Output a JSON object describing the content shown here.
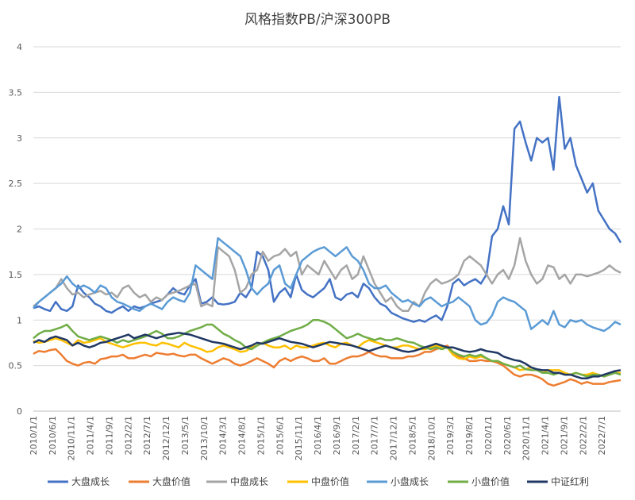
{
  "chart_data": {
    "type": "line",
    "title": "风格指数PB/沪深300PB",
    "xlabel": "",
    "ylabel": "",
    "ylim": [
      0,
      4
    ],
    "y_ticks": [
      "0",
      "0.5",
      "1",
      "1.5",
      "2",
      "2.5",
      "3",
      "3.5",
      "4"
    ],
    "x_tick_labels": [
      "2010/1/1",
      "2010/6/1",
      "2010/11/1",
      "2011/4/1",
      "2011/9/1",
      "2012/2/1",
      "2012/7/1",
      "2012/12/1",
      "2013/5/1",
      "2013/10/1",
      "2014/3/1",
      "2014/8/1",
      "2015/1/1",
      "2015/6/1",
      "2015/11/1",
      "2016/4/1",
      "2016/9/1",
      "2017/2/1",
      "2017/7/1",
      "2017/12/1",
      "2018/5/1",
      "2018/10/1",
      "2019/3/1",
      "2019/8/1",
      "2020/1/1",
      "2020/6/1",
      "2020/11/1",
      "2021/4/1",
      "2021/9/1",
      "2022/2/1",
      "2022/7/1"
    ],
    "grid": true,
    "legend_position": "bottom",
    "series": [
      {
        "name": "大盘成长",
        "color": "#4472C4",
        "values": [
          1.13,
          1.15,
          1.12,
          1.1,
          1.2,
          1.12,
          1.1,
          1.15,
          1.38,
          1.3,
          1.25,
          1.18,
          1.15,
          1.1,
          1.08,
          1.12,
          1.15,
          1.1,
          1.15,
          1.13,
          1.15,
          1.18,
          1.2,
          1.22,
          1.28,
          1.35,
          1.3,
          1.28,
          1.38,
          1.45,
          1.18,
          1.2,
          1.25,
          1.18,
          1.17,
          1.18,
          1.2,
          1.3,
          1.25,
          1.35,
          1.75,
          1.7,
          1.55,
          1.2,
          1.3,
          1.35,
          1.25,
          1.5,
          1.33,
          1.28,
          1.25,
          1.3,
          1.35,
          1.45,
          1.25,
          1.22,
          1.28,
          1.3,
          1.25,
          1.4,
          1.35,
          1.25,
          1.18,
          1.15,
          1.08,
          1.05,
          1.02,
          1.0,
          0.98,
          1.0,
          0.98,
          1.02,
          1.05,
          1.0,
          1.15,
          1.4,
          1.45,
          1.38,
          1.42,
          1.45,
          1.4,
          1.5,
          1.92,
          2.0,
          2.25,
          2.05,
          3.1,
          3.18,
          2.95,
          2.75,
          3.0,
          2.95,
          3.0,
          2.65,
          3.45,
          2.88,
          3.0,
          2.7,
          2.55,
          2.4,
          2.5,
          2.2,
          2.1,
          2.0,
          1.95,
          1.85
        ]
      },
      {
        "name": "大盘价值",
        "color": "#ED7D31",
        "values": [
          0.63,
          0.66,
          0.65,
          0.67,
          0.68,
          0.62,
          0.55,
          0.52,
          0.5,
          0.53,
          0.54,
          0.52,
          0.57,
          0.58,
          0.6,
          0.6,
          0.62,
          0.58,
          0.58,
          0.6,
          0.62,
          0.6,
          0.64,
          0.63,
          0.62,
          0.63,
          0.61,
          0.6,
          0.62,
          0.62,
          0.58,
          0.55,
          0.52,
          0.55,
          0.58,
          0.56,
          0.52,
          0.5,
          0.52,
          0.55,
          0.58,
          0.55,
          0.52,
          0.48,
          0.55,
          0.58,
          0.55,
          0.58,
          0.6,
          0.58,
          0.55,
          0.55,
          0.58,
          0.52,
          0.52,
          0.55,
          0.58,
          0.6,
          0.6,
          0.62,
          0.65,
          0.62,
          0.6,
          0.6,
          0.58,
          0.58,
          0.58,
          0.6,
          0.6,
          0.62,
          0.65,
          0.65,
          0.68,
          0.7,
          0.72,
          0.65,
          0.6,
          0.58,
          0.55,
          0.55,
          0.56,
          0.55,
          0.55,
          0.53,
          0.5,
          0.45,
          0.4,
          0.38,
          0.4,
          0.4,
          0.38,
          0.35,
          0.3,
          0.28,
          0.3,
          0.32,
          0.35,
          0.33,
          0.3,
          0.32,
          0.3,
          0.3,
          0.3,
          0.32,
          0.33,
          0.34
        ]
      },
      {
        "name": "中盘成长",
        "color": "#A5A5A5",
        "values": [
          1.15,
          1.2,
          1.25,
          1.3,
          1.35,
          1.45,
          1.35,
          1.28,
          1.3,
          1.25,
          1.28,
          1.3,
          1.32,
          1.28,
          1.3,
          1.25,
          1.35,
          1.38,
          1.3,
          1.25,
          1.28,
          1.2,
          1.25,
          1.22,
          1.28,
          1.3,
          1.32,
          1.35,
          1.38,
          1.4,
          1.15,
          1.18,
          1.15,
          1.8,
          1.75,
          1.7,
          1.55,
          1.3,
          1.35,
          1.5,
          1.55,
          1.75,
          1.65,
          1.7,
          1.72,
          1.78,
          1.7,
          1.75,
          1.5,
          1.6,
          1.55,
          1.5,
          1.65,
          1.55,
          1.45,
          1.55,
          1.6,
          1.45,
          1.5,
          1.7,
          1.55,
          1.4,
          1.3,
          1.2,
          1.25,
          1.15,
          1.1,
          1.1,
          1.2,
          1.15,
          1.3,
          1.4,
          1.45,
          1.4,
          1.42,
          1.45,
          1.5,
          1.65,
          1.7,
          1.65,
          1.6,
          1.5,
          1.4,
          1.5,
          1.55,
          1.45,
          1.6,
          1.9,
          1.65,
          1.5,
          1.4,
          1.45,
          1.6,
          1.58,
          1.45,
          1.5,
          1.4,
          1.5,
          1.5,
          1.48,
          1.5,
          1.52,
          1.55,
          1.6,
          1.55,
          1.52
        ]
      },
      {
        "name": "中盘价值",
        "color": "#FFC000",
        "values": [
          0.77,
          0.75,
          0.76,
          0.78,
          0.8,
          0.78,
          0.75,
          0.72,
          0.78,
          0.75,
          0.76,
          0.78,
          0.8,
          0.76,
          0.74,
          0.72,
          0.7,
          0.72,
          0.74,
          0.75,
          0.75,
          0.73,
          0.72,
          0.75,
          0.74,
          0.72,
          0.7,
          0.75,
          0.72,
          0.7,
          0.68,
          0.65,
          0.66,
          0.7,
          0.72,
          0.7,
          0.68,
          0.65,
          0.66,
          0.7,
          0.72,
          0.75,
          0.72,
          0.7,
          0.7,
          0.72,
          0.68,
          0.72,
          0.7,
          0.7,
          0.72,
          0.74,
          0.75,
          0.72,
          0.7,
          0.74,
          0.75,
          0.72,
          0.7,
          0.75,
          0.78,
          0.76,
          0.74,
          0.72,
          0.7,
          0.7,
          0.72,
          0.72,
          0.7,
          0.68,
          0.68,
          0.7,
          0.72,
          0.7,
          0.7,
          0.62,
          0.58,
          0.57,
          0.6,
          0.58,
          0.6,
          0.58,
          0.55,
          0.55,
          0.52,
          0.5,
          0.48,
          0.45,
          0.46,
          0.48,
          0.45,
          0.42,
          0.45,
          0.45,
          0.45,
          0.42,
          0.4,
          0.42,
          0.4,
          0.4,
          0.42,
          0.4,
          0.38,
          0.4,
          0.42,
          0.42
        ]
      },
      {
        "name": "小盘成长",
        "color": "#5B9BD5",
        "values": [
          1.13,
          1.2,
          1.25,
          1.3,
          1.35,
          1.4,
          1.48,
          1.4,
          1.35,
          1.38,
          1.35,
          1.3,
          1.38,
          1.35,
          1.25,
          1.2,
          1.18,
          1.15,
          1.12,
          1.1,
          1.15,
          1.18,
          1.15,
          1.12,
          1.2,
          1.25,
          1.22,
          1.2,
          1.3,
          1.6,
          1.55,
          1.5,
          1.45,
          1.9,
          1.85,
          1.8,
          1.75,
          1.7,
          1.55,
          1.35,
          1.28,
          1.35,
          1.4,
          1.55,
          1.6,
          1.4,
          1.35,
          1.5,
          1.65,
          1.7,
          1.75,
          1.78,
          1.8,
          1.75,
          1.7,
          1.75,
          1.8,
          1.7,
          1.65,
          1.55,
          1.4,
          1.35,
          1.35,
          1.38,
          1.3,
          1.25,
          1.2,
          1.22,
          1.18,
          1.15,
          1.22,
          1.25,
          1.2,
          1.15,
          1.18,
          1.2,
          1.25,
          1.2,
          1.15,
          1.0,
          0.95,
          0.97,
          1.05,
          1.2,
          1.25,
          1.22,
          1.2,
          1.15,
          1.1,
          0.9,
          0.95,
          1.0,
          0.95,
          1.1,
          0.95,
          0.92,
          1.0,
          0.98,
          1.0,
          0.95,
          0.92,
          0.9,
          0.88,
          0.92,
          0.98,
          0.95
        ]
      },
      {
        "name": "小盘价值",
        "color": "#70AD47",
        "values": [
          0.8,
          0.85,
          0.88,
          0.88,
          0.9,
          0.92,
          0.95,
          0.88,
          0.82,
          0.8,
          0.78,
          0.8,
          0.82,
          0.8,
          0.78,
          0.75,
          0.78,
          0.76,
          0.78,
          0.8,
          0.82,
          0.85,
          0.88,
          0.85,
          0.8,
          0.8,
          0.82,
          0.85,
          0.88,
          0.9,
          0.92,
          0.95,
          0.95,
          0.9,
          0.85,
          0.82,
          0.78,
          0.75,
          0.7,
          0.68,
          0.72,
          0.75,
          0.78,
          0.8,
          0.82,
          0.85,
          0.88,
          0.9,
          0.92,
          0.95,
          1.0,
          1.0,
          0.98,
          0.95,
          0.9,
          0.85,
          0.8,
          0.82,
          0.85,
          0.82,
          0.8,
          0.78,
          0.8,
          0.78,
          0.78,
          0.8,
          0.78,
          0.76,
          0.75,
          0.72,
          0.7,
          0.68,
          0.7,
          0.68,
          0.7,
          0.65,
          0.62,
          0.6,
          0.62,
          0.6,
          0.62,
          0.58,
          0.55,
          0.55,
          0.52,
          0.5,
          0.48,
          0.5,
          0.46,
          0.45,
          0.45,
          0.42,
          0.42,
          0.4,
          0.42,
          0.4,
          0.4,
          0.42,
          0.4,
          0.38,
          0.4,
          0.4,
          0.38,
          0.4,
          0.42,
          0.4
        ]
      },
      {
        "name": "中证红利",
        "color": "#203864",
        "values": [
          0.75,
          0.78,
          0.76,
          0.8,
          0.82,
          0.8,
          0.78,
          0.72,
          0.75,
          0.72,
          0.7,
          0.72,
          0.75,
          0.76,
          0.78,
          0.8,
          0.82,
          0.84,
          0.8,
          0.82,
          0.84,
          0.82,
          0.8,
          0.82,
          0.84,
          0.85,
          0.86,
          0.85,
          0.84,
          0.82,
          0.8,
          0.78,
          0.76,
          0.75,
          0.74,
          0.72,
          0.7,
          0.68,
          0.7,
          0.72,
          0.75,
          0.74,
          0.76,
          0.78,
          0.8,
          0.78,
          0.76,
          0.75,
          0.74,
          0.72,
          0.7,
          0.72,
          0.74,
          0.76,
          0.75,
          0.74,
          0.73,
          0.72,
          0.7,
          0.68,
          0.66,
          0.68,
          0.7,
          0.72,
          0.7,
          0.68,
          0.66,
          0.65,
          0.66,
          0.68,
          0.7,
          0.72,
          0.74,
          0.72,
          0.7,
          0.7,
          0.68,
          0.66,
          0.65,
          0.66,
          0.68,
          0.66,
          0.65,
          0.64,
          0.6,
          0.58,
          0.56,
          0.55,
          0.52,
          0.48,
          0.46,
          0.45,
          0.45,
          0.42,
          0.42,
          0.4,
          0.4,
          0.38,
          0.36,
          0.36,
          0.38,
          0.38,
          0.4,
          0.42,
          0.44,
          0.45
        ]
      }
    ]
  }
}
